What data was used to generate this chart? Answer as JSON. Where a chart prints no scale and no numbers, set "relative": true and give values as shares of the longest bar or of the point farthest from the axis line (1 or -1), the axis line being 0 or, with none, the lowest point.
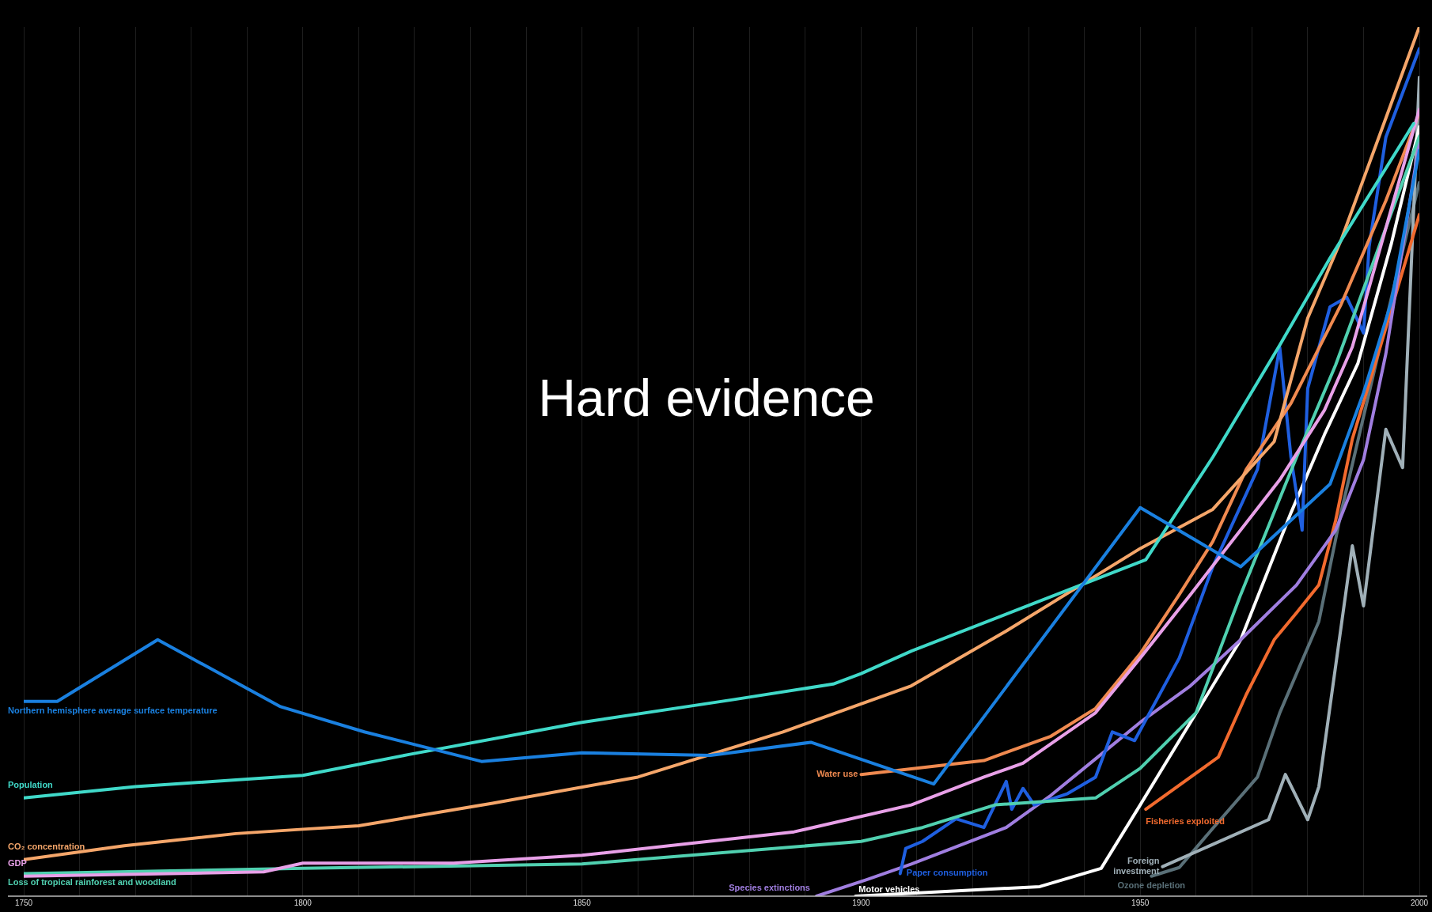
{
  "chart_data": {
    "type": "line",
    "title": "Hard evidence",
    "relative": true,
    "legend": false,
    "grid": "x",
    "marker": "none",
    "line_style": "solid",
    "xlim": [
      1750,
      2000
    ],
    "xticks": [
      1750,
      {
        "value": 1760,
        "label": null
      },
      {
        "value": 1770,
        "label": null
      },
      {
        "value": 1780,
        "label": null
      },
      {
        "value": 1790,
        "label": null
      },
      1800,
      {
        "value": 1810,
        "label": null
      },
      {
        "value": 1820,
        "label": null
      },
      {
        "value": 1830,
        "label": null
      },
      {
        "value": 1840,
        "label": null
      },
      1850,
      {
        "value": 1860,
        "label": null
      },
      {
        "value": 1870,
        "label": null
      },
      {
        "value": 1880,
        "label": null
      },
      {
        "value": 1890,
        "label": null
      },
      1900,
      {
        "value": 1910,
        "label": null
      },
      {
        "value": 1920,
        "label": null
      },
      {
        "value": 1930,
        "label": null
      },
      {
        "value": 1940,
        "label": null
      },
      1950,
      {
        "value": 1960,
        "label": null
      },
      {
        "value": 1970,
        "label": null
      },
      {
        "value": 1980,
        "label": null
      },
      {
        "value": 1990,
        "label": null
      },
      2000
    ],
    "series": [
      {
        "name": "Northern hemisphere average surface temperature",
        "color": "#1a80e0",
        "x": [
          1750,
          1756,
          1774,
          1796,
          1811,
          1832,
          1850,
          1873,
          1891,
          1913,
          1950,
          1968,
          1984,
          1990,
          1995,
          2000
        ],
        "values": [
          0.224,
          0.224,
          0.295,
          0.218,
          0.189,
          0.155,
          0.165,
          0.162,
          0.177,
          0.129,
          0.447,
          0.379,
          0.474,
          0.579,
          0.684,
          0.858
        ]
      },
      {
        "name": "Population",
        "color": "#40d9c9",
        "x": [
          1750,
          1770,
          1800,
          1819,
          1850,
          1877,
          1895,
          1900,
          1909,
          1931,
          1951,
          1963,
          1975,
          1984,
          1999
        ],
        "values": [
          0.113,
          0.126,
          0.139,
          0.163,
          0.2,
          0.226,
          0.244,
          0.256,
          0.282,
          0.337,
          0.387,
          0.505,
          0.634,
          0.734,
          0.889
        ]
      },
      {
        "name": "CO₂ concentration",
        "color": "#f5a66a",
        "x": [
          1750,
          1768,
          1788,
          1800,
          1810,
          1834,
          1860,
          1886,
          1909,
          1926,
          1950,
          1963,
          1974,
          1980,
          1986,
          2000
        ],
        "values": [
          0.042,
          0.058,
          0.072,
          0.077,
          0.081,
          0.107,
          0.137,
          0.189,
          0.242,
          0.305,
          0.4,
          0.445,
          0.523,
          0.665,
          0.755,
          1.0
        ]
      },
      {
        "name": "GDP",
        "color": "#e8a0e8",
        "x": [
          1750,
          1793,
          1800,
          1827,
          1850,
          1888,
          1909,
          1922,
          1929,
          1942,
          1950,
          1959,
          1975,
          1983,
          1988,
          2000
        ],
        "values": [
          0.023,
          0.028,
          0.038,
          0.038,
          0.047,
          0.074,
          0.105,
          0.137,
          0.153,
          0.211,
          0.274,
          0.347,
          0.479,
          0.559,
          0.632,
          0.905
        ]
      },
      {
        "name": "Loss of tropical rainforest and woodland",
        "color": "#50d0b0",
        "x": [
          1750,
          1800,
          1850,
          1900,
          1911,
          1924,
          1942,
          1950,
          1960,
          1968,
          1978,
          1985,
          1991,
          2000
        ],
        "values": [
          0.026,
          0.032,
          0.037,
          0.063,
          0.079,
          0.105,
          0.113,
          0.147,
          0.211,
          0.347,
          0.505,
          0.611,
          0.716,
          0.874
        ]
      },
      {
        "name": "Water use",
        "color": "#f08a50",
        "x": [
          1900,
          1922,
          1934,
          1942,
          1950,
          1957,
          1963,
          1969,
          1977,
          1986,
          1994,
          2000
        ],
        "values": [
          0.14,
          0.156,
          0.184,
          0.216,
          0.279,
          0.347,
          0.408,
          0.491,
          0.567,
          0.681,
          0.8,
          0.901
        ]
      },
      {
        "name": "Paper consumption",
        "color": "#1f5fe0",
        "x": [
          1907,
          1908,
          1911,
          1917,
          1922,
          1926,
          1927,
          1929,
          1931,
          1937,
          1942,
          1945,
          1949,
          1957,
          1963,
          1971,
          1975,
          1977,
          1979,
          1980,
          1984,
          1987,
          1990,
          1991,
          1994,
          2000
        ],
        "values": [
          0.026,
          0.055,
          0.063,
          0.089,
          0.079,
          0.132,
          0.1,
          0.124,
          0.105,
          0.118,
          0.137,
          0.189,
          0.179,
          0.274,
          0.379,
          0.491,
          0.631,
          0.505,
          0.421,
          0.584,
          0.678,
          0.689,
          0.648,
          0.747,
          0.873,
          0.975
        ]
      },
      {
        "name": "Species extinctions",
        "color": "#a07ee0",
        "x": [
          1892,
          1901,
          1909,
          1926,
          1934,
          1942,
          1950,
          1959,
          1968,
          1978,
          1985,
          1990,
          1994,
          2000
        ],
        "values": [
          0,
          0.019,
          0.037,
          0.079,
          0.116,
          0.158,
          0.2,
          0.242,
          0.295,
          0.358,
          0.421,
          0.502,
          0.624,
          0.868
        ]
      },
      {
        "name": "Motor vehicles",
        "color": "#ffffff",
        "x": [
          1899,
          1932,
          1943,
          1950,
          1959,
          1968,
          1977,
          1983,
          1989,
          1995,
          2000
        ],
        "values": [
          0,
          0.011,
          0.032,
          0.105,
          0.2,
          0.295,
          0.441,
          0.531,
          0.613,
          0.751,
          0.885
        ]
      },
      {
        "name": "Fisheries exploited",
        "color": "#f26a2e",
        "x": [
          1951,
          1964,
          1969,
          1974,
          1978,
          1982,
          1985,
          1988,
          1993,
          2000
        ],
        "values": [
          0.1,
          0.16,
          0.232,
          0.295,
          0.326,
          0.358,
          0.432,
          0.526,
          0.632,
          0.784
        ]
      },
      {
        "name": "Foreign investment",
        "color": "#a0b0b8",
        "x": [
          1954,
          1973,
          1976,
          1980,
          1982,
          1988,
          1990,
          1994,
          1997,
          2000
        ],
        "values": [
          0.034,
          0.088,
          0.14,
          0.088,
          0.126,
          0.403,
          0.334,
          0.537,
          0.493,
          0.942
        ]
      },
      {
        "name": "Ozone depletion",
        "color": "#5a7078",
        "x": [
          1952,
          1957,
          1963,
          1971,
          1975,
          1982,
          1986,
          1991,
          1996,
          2000
        ],
        "values": [
          0.023,
          0.033,
          0.078,
          0.137,
          0.211,
          0.316,
          0.442,
          0.579,
          0.716,
          0.821
        ]
      }
    ]
  }
}
